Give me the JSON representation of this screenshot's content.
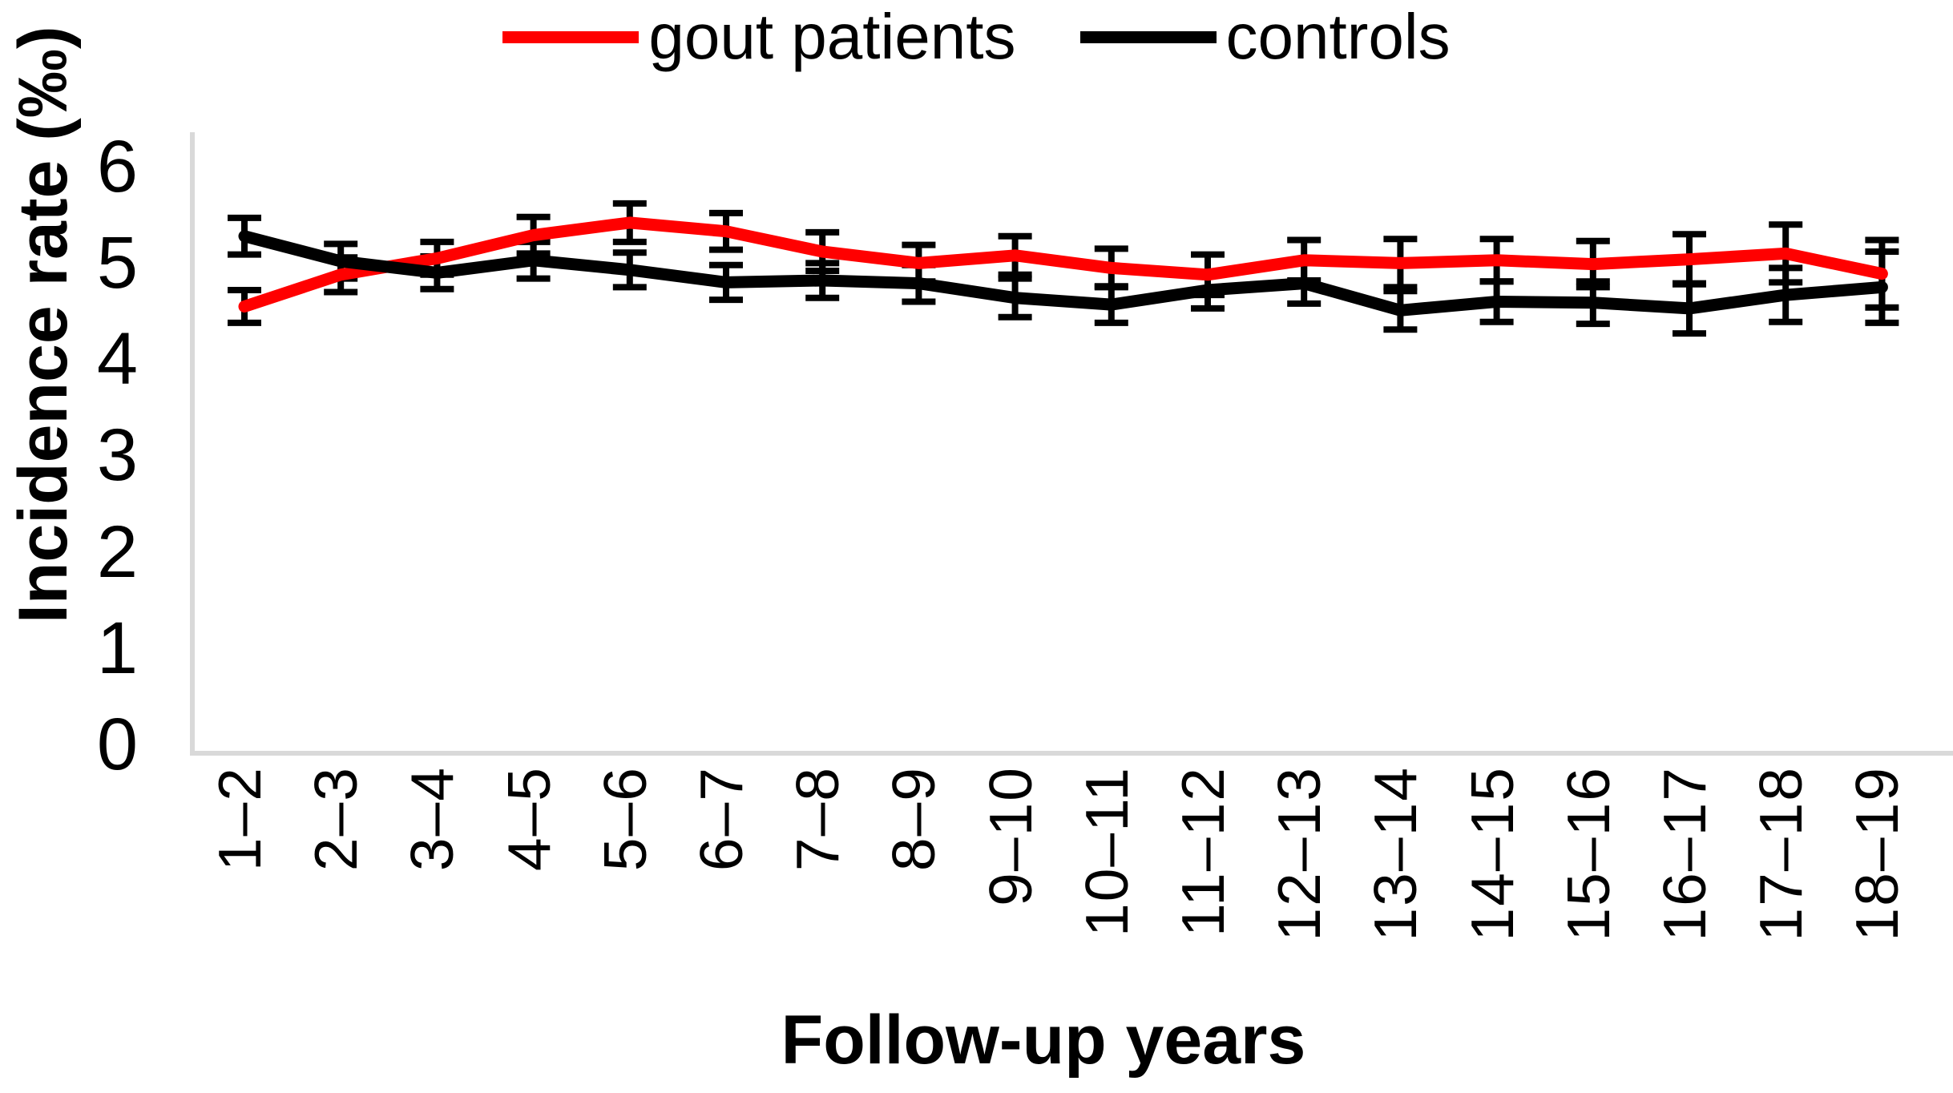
{
  "chart_data": {
    "type": "line",
    "title": "",
    "xlabel": "Follow-up years",
    "ylabel": "Incidence rate (‰)",
    "categories": [
      "1–2",
      "2–3",
      "3–4",
      "4–5",
      "5–6",
      "6–7",
      "7–8",
      "8–9",
      "9–10",
      "10–11",
      "11–12",
      "12–13",
      "13–14",
      "14–15",
      "15–16",
      "16–17",
      "17–18",
      "18–19"
    ],
    "series": [
      {
        "name": "gout patients",
        "color": "#ff0000",
        "values": [
          4.58,
          4.91,
          5.08,
          5.32,
          5.45,
          5.36,
          5.15,
          5.03,
          5.11,
          4.98,
          4.91,
          5.06,
          5.03,
          5.06,
          5.02,
          5.07,
          5.13,
          4.92
        ],
        "error": [
          0.17,
          0.18,
          0.17,
          0.19,
          0.2,
          0.19,
          0.2,
          0.19,
          0.2,
          0.2,
          0.21,
          0.21,
          0.25,
          0.22,
          0.24,
          0.26,
          0.3,
          0.35
        ]
      },
      {
        "name": "controls",
        "color": "#000000",
        "values": [
          5.31,
          5.05,
          4.93,
          5.06,
          4.96,
          4.83,
          4.85,
          4.82,
          4.67,
          4.6,
          4.75,
          4.82,
          4.54,
          4.63,
          4.62,
          4.56,
          4.7,
          4.78
        ],
        "error": [
          0.19,
          0.18,
          0.17,
          0.19,
          0.18,
          0.18,
          0.18,
          0.19,
          0.2,
          0.19,
          0.19,
          0.21,
          0.2,
          0.21,
          0.22,
          0.26,
          0.28,
          0.37
        ]
      }
    ],
    "yticks": [
      0,
      1,
      2,
      3,
      4,
      5,
      6
    ],
    "ylim": [
      0,
      6.4
    ],
    "grid": false,
    "legend_position": "top",
    "error_bar_color": "#000000",
    "axis_color": "#d9d9d9"
  }
}
